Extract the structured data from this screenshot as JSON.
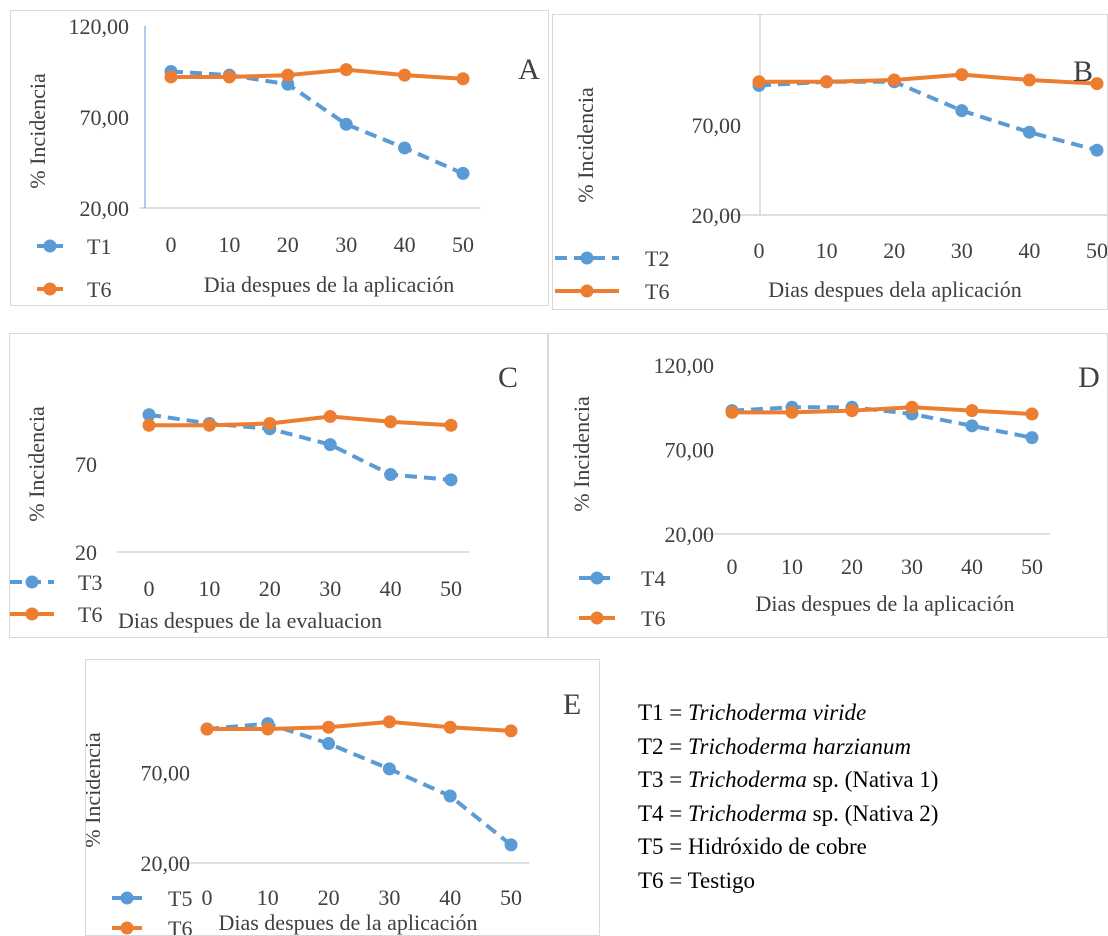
{
  "colors": {
    "dashed_series": "#5b9bd5",
    "solid_series": "#ed7d31",
    "axis": "#bfbfbf",
    "text": "#404040"
  },
  "chart_data": [
    {
      "type": "line",
      "panel_letter": "A",
      "categories": [
        "0",
        "10",
        "20",
        "30",
        "40",
        "50"
      ],
      "xlabel": "Dia despues de la aplicación",
      "ylabel": "% Incidencia",
      "yticks": [
        "20,00",
        "70,00",
        "120,00"
      ],
      "ylim": [
        20,
        120
      ],
      "series": [
        {
          "name": "T1",
          "style": "dashed",
          "values": [
            95,
            93,
            88,
            66,
            53,
            39
          ]
        },
        {
          "name": "T6",
          "style": "solid",
          "values": [
            92,
            92,
            93,
            96,
            93,
            91
          ]
        }
      ]
    },
    {
      "type": "line",
      "panel_letter": "B",
      "categories": [
        "0",
        "10",
        "20",
        "30",
        "40",
        "50"
      ],
      "xlabel": "Dias despues dela aplicación",
      "ylabel": "% Incidencia",
      "yticks": [
        "20,00",
        "70,00"
      ],
      "ylim": [
        20,
        120
      ],
      "series": [
        {
          "name": "T2",
          "style": "dashed",
          "values": [
            92,
            94,
            94,
            78,
            66,
            56
          ]
        },
        {
          "name": "T6",
          "style": "solid",
          "values": [
            94,
            94,
            95,
            98,
            95,
            93
          ]
        }
      ]
    },
    {
      "type": "line",
      "panel_letter": "C",
      "categories": [
        "0",
        "10",
        "20",
        "30",
        "40",
        "50"
      ],
      "xlabel": "Dias despues de la evaluacion",
      "ylabel": "% Incidencia",
      "yticks": [
        "20",
        "70"
      ],
      "ylim": [
        20,
        120
      ],
      "series": [
        {
          "name": "T3",
          "style": "dashed",
          "values": [
            98,
            93,
            90,
            81,
            64,
            61
          ]
        },
        {
          "name": "T6",
          "style": "solid",
          "values": [
            92,
            92,
            93,
            97,
            94,
            92
          ]
        }
      ]
    },
    {
      "type": "line",
      "panel_letter": "D",
      "categories": [
        "0",
        "10",
        "20",
        "30",
        "40",
        "50"
      ],
      "xlabel": "Dias despues de la aplicación",
      "ylabel": "% Incidencia",
      "yticks": [
        "20,00",
        "70,00",
        "120,00"
      ],
      "ylim": [
        20,
        120
      ],
      "series": [
        {
          "name": "T4",
          "style": "dashed",
          "values": [
            93,
            95,
            95,
            91,
            84,
            77
          ]
        },
        {
          "name": "T6",
          "style": "solid",
          "values": [
            92,
            92,
            93,
            95,
            93,
            91
          ]
        }
      ]
    },
    {
      "type": "line",
      "panel_letter": "E",
      "categories": [
        "0",
        "10",
        "20",
        "30",
        "40",
        "50"
      ],
      "xlabel": "Dias despues de la aplicación",
      "ylabel": "% Incidencia",
      "yticks": [
        "20,00",
        "70,00"
      ],
      "ylim": [
        20,
        120
      ],
      "series": [
        {
          "name": "T5",
          "style": "dashed",
          "values": [
            94,
            97,
            86,
            72,
            57,
            30
          ]
        },
        {
          "name": "T6",
          "style": "solid",
          "values": [
            94,
            94,
            95,
            98,
            95,
            93
          ]
        }
      ]
    }
  ],
  "key": {
    "lines": [
      {
        "prefix": "T1 = ",
        "italic": "Trichoderma viride",
        "suffix": ""
      },
      {
        "prefix": "T2 = ",
        "italic": "Trichoderma harzianum",
        "suffix": ""
      },
      {
        "prefix": "T3 = ",
        "italic": "Trichoderma",
        "suffix": " sp. (Nativa 1)"
      },
      {
        "prefix": "T4 = ",
        "italic": "Trichoderma",
        "suffix": " sp. (Nativa 2)"
      },
      {
        "prefix": "T5 = ",
        "italic": "",
        "suffix": "Hidróxido de cobre"
      },
      {
        "prefix": "T6 = ",
        "italic": "",
        "suffix": "Testigo"
      }
    ]
  }
}
